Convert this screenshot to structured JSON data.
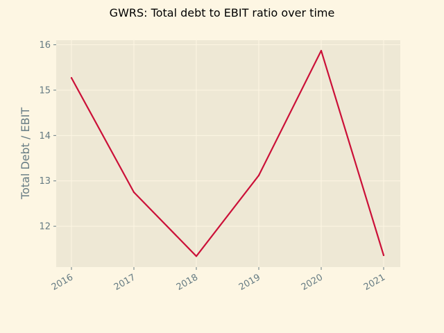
{
  "chart_data": {
    "type": "line",
    "title": "GWRS: Total debt to EBIT ratio over time",
    "xlabel": "",
    "ylabel": "Total Debt / EBIT",
    "x": [
      "2016",
      "2017",
      "2018",
      "2019",
      "2020",
      "2021"
    ],
    "series": [
      {
        "values": [
          15.27,
          12.75,
          11.34,
          13.12,
          15.87,
          11.36
        ]
      }
    ],
    "yticks": [
      12,
      13,
      14,
      15,
      16
    ],
    "ylim": [
      11.1,
      16.1
    ],
    "grid": true,
    "colors": {
      "background": "#fdf6e3",
      "plot_area": "#eee8d5",
      "grid": "#fdf6e3",
      "line": "#cb1038",
      "text": "#657b83",
      "title": "#000000"
    }
  }
}
